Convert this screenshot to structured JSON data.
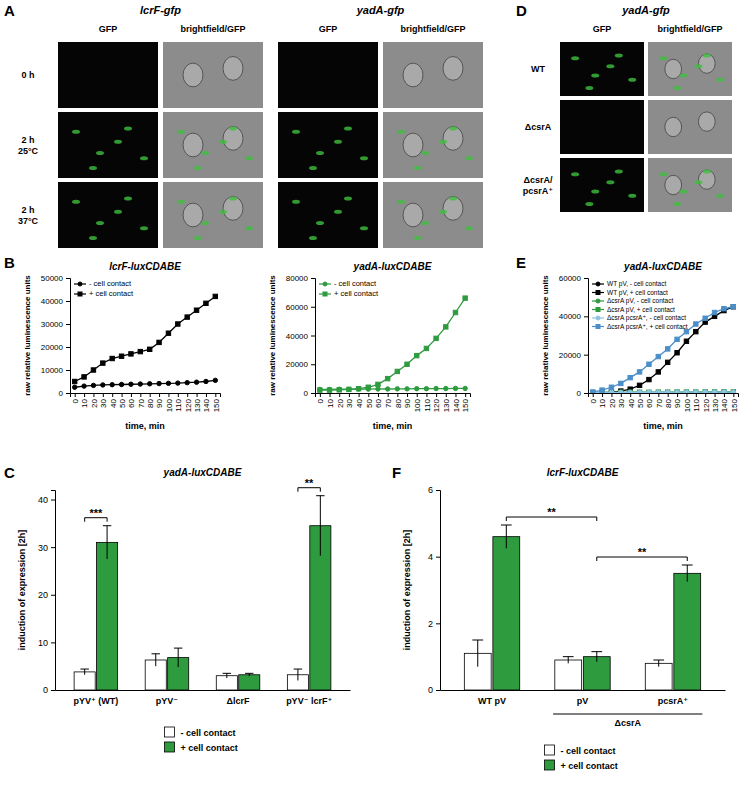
{
  "panel_labels": [
    "A",
    "B",
    "C",
    "D",
    "E",
    "F"
  ],
  "image_panels": [
    {
      "titles": [
        "lcrF-gfp",
        "yadA-gfp"
      ],
      "columns": [
        "GFP",
        "brightfield/GFP",
        "GFP",
        "brightfield/GFP"
      ],
      "rows": [
        [
          "0 h"
        ],
        [
          "2 h",
          "25°C"
        ],
        [
          "2 h",
          "37°C"
        ]
      ]
    },
    {
      "titles": [
        "yadA-gfp"
      ],
      "columns": [
        "GFP",
        "brightfield/GFP"
      ],
      "rows": [
        [
          "WT"
        ],
        [
          "ΔcsrA"
        ],
        [
          "ΔcsrA/",
          "pcsrA⁺"
        ]
      ]
    }
  ],
  "chart_data": [
    {
      "type": "line",
      "title": "lcrF-luxCDABE",
      "xlabel": "time, min",
      "ylabel": "raw relative luminescence units",
      "x": [
        0,
        10,
        20,
        30,
        40,
        50,
        60,
        70,
        80,
        90,
        100,
        110,
        120,
        130,
        140,
        150
      ],
      "xlim": [
        -5,
        155
      ],
      "xticks": [
        0,
        10,
        20,
        30,
        40,
        50,
        60,
        70,
        80,
        90,
        100,
        110,
        120,
        130,
        140,
        150
      ],
      "ylim": [
        0,
        50000
      ],
      "yticks": [
        0,
        10000,
        20000,
        30000,
        40000,
        50000
      ],
      "legend": "top-left",
      "series": [
        {
          "name": "- cell contact",
          "color": "#000000",
          "marker": "circle",
          "values": [
            2500,
            3000,
            3300,
            3500,
            3600,
            3700,
            3800,
            3900,
            4000,
            4100,
            4200,
            4300,
            4500,
            4700,
            5000,
            5500
          ]
        },
        {
          "name": "+ cell contact",
          "color": "#000000",
          "marker": "square",
          "values": [
            5000,
            7000,
            10000,
            13000,
            15000,
            16000,
            17000,
            18000,
            19000,
            22000,
            26000,
            30000,
            33000,
            36000,
            39000,
            42000
          ]
        }
      ]
    },
    {
      "type": "line",
      "title": "yadA-luxCDABE",
      "xlabel": "time, min",
      "ylabel": "raw relative luminescence units",
      "x": [
        0,
        10,
        20,
        30,
        40,
        50,
        60,
        70,
        80,
        90,
        100,
        110,
        120,
        130,
        140,
        150
      ],
      "xlim": [
        -5,
        155
      ],
      "xticks": [
        0,
        10,
        20,
        30,
        40,
        50,
        60,
        70,
        80,
        90,
        100,
        110,
        120,
        130,
        140,
        150
      ],
      "ylim": [
        0,
        80000
      ],
      "yticks": [
        0,
        20000,
        40000,
        60000,
        80000
      ],
      "legend": "top-left",
      "series": [
        {
          "name": "- cell contact",
          "color": "#2e9b3f",
          "marker": "circle",
          "values": [
            2500,
            2500,
            2600,
            2600,
            2700,
            2700,
            2800,
            2800,
            2900,
            2900,
            3000,
            3000,
            3100,
            3100,
            3200,
            3200
          ]
        },
        {
          "name": "+ cell contact",
          "color": "#2e9b3f",
          "marker": "square",
          "values": [
            2000,
            2000,
            2200,
            2500,
            3000,
            4000,
            6000,
            10000,
            15000,
            20000,
            26000,
            31000,
            38000,
            46000,
            56000,
            66000
          ]
        }
      ]
    },
    {
      "type": "bar",
      "title": "yadA-luxCDABE",
      "ylabel": "induction of expression [2h]",
      "categories": [
        "pYV⁺ (WT)",
        "pYV⁻",
        "ΔlcrF",
        "pYV⁻ lcrF⁺"
      ],
      "ylim": [
        0,
        42
      ],
      "yticks": [
        0,
        10,
        20,
        30,
        40
      ],
      "legend": "bottom",
      "series": [
        {
          "name": "- cell contact",
          "color": "#ffffff",
          "values": [
            3.8,
            6.3,
            3.0,
            3.2
          ],
          "errors": [
            0.6,
            1.3,
            0.5,
            1.2
          ]
        },
        {
          "name": "+ cell contact",
          "color": "#2e9b3f",
          "values": [
            31,
            6.8,
            3.2,
            34.5
          ],
          "errors": [
            3.5,
            2.0,
            0.3,
            6.3
          ]
        }
      ],
      "annotations": [
        {
          "text": "***",
          "from": 0,
          "to": 0
        },
        {
          "text": "**",
          "from": 3,
          "to": 3
        }
      ]
    },
    {
      "type": "line",
      "title": "yadA-luxCDABE",
      "xlabel": "time, min",
      "ylabel": "raw relative luminescence units",
      "x": [
        0,
        10,
        20,
        30,
        40,
        50,
        60,
        70,
        80,
        90,
        100,
        110,
        120,
        130,
        140,
        150
      ],
      "xlim": [
        -5,
        155
      ],
      "xticks": [
        0,
        10,
        20,
        30,
        40,
        50,
        60,
        70,
        80,
        90,
        100,
        110,
        120,
        130,
        140,
        150
      ],
      "ylim": [
        0,
        60000
      ],
      "yticks": [
        0,
        20000,
        40000,
        60000
      ],
      "legend": "top-left",
      "series": [
        {
          "name": "WT pV, - cell contact",
          "color": "#000000",
          "marker": "circle",
          "values": [
            100,
            100,
            100,
            150,
            150,
            150,
            200,
            200,
            200,
            200,
            250,
            250,
            250,
            300,
            300,
            300
          ]
        },
        {
          "name": "WT pV, + cell contact",
          "color": "#000000",
          "marker": "square",
          "values": [
            0,
            200,
            500,
            1000,
            2000,
            4000,
            7000,
            11000,
            16000,
            21000,
            27000,
            32000,
            37000,
            40000,
            43000,
            45000
          ]
        },
        {
          "name": "ΔcsrA pV, - cell contact",
          "color": "#2e9b3f",
          "marker": "circle",
          "values": [
            200,
            200,
            200,
            200,
            250,
            250,
            250,
            250,
            300,
            300,
            300,
            300,
            350,
            350,
            350,
            350
          ]
        },
        {
          "name": "ΔcsrA pV, + cell contact",
          "color": "#2e9b3f",
          "marker": "square",
          "values": [
            300,
            300,
            350,
            350,
            400,
            400,
            400,
            450,
            450,
            500,
            500,
            500,
            550,
            550,
            600,
            600
          ]
        },
        {
          "name": "ΔcsrA pcsrA⁺, - cell contact",
          "color": "#8ec3e6",
          "marker": "circle",
          "values": [
            300,
            300,
            300,
            350,
            350,
            350,
            400,
            400,
            400,
            450,
            450,
            450,
            500,
            500,
            500,
            500
          ]
        },
        {
          "name": "ΔcsrA pcsrA⁺, + cell contact",
          "color": "#4a8fc9",
          "marker": "square",
          "values": [
            500,
            1500,
            3000,
            5000,
            8000,
            11000,
            15000,
            19000,
            23000,
            28000,
            32000,
            36000,
            39000,
            42000,
            44000,
            45000
          ]
        }
      ]
    },
    {
      "type": "bar",
      "title": "lcrF-luxCDABE",
      "ylabel": "induction of expression [2h]",
      "categories": [
        "WT pV",
        "pV",
        "pcsrA⁺"
      ],
      "ylim": [
        0,
        6
      ],
      "yticks": [
        0,
        2,
        4,
        6
      ],
      "legend": "bottom",
      "series": [
        {
          "name": "- cell contact",
          "color": "#ffffff",
          "values": [
            1.1,
            0.9,
            0.8
          ],
          "errors": [
            0.4,
            0.1,
            0.1
          ]
        },
        {
          "name": "+ cell contact",
          "color": "#2e9b3f",
          "values": [
            4.6,
            1.0,
            3.5
          ],
          "errors": [
            0.35,
            0.15,
            0.25
          ]
        }
      ],
      "annotations": [
        {
          "text": "**",
          "from": 0,
          "to": 1
        },
        {
          "text": "**",
          "from": 1,
          "to": 2
        }
      ],
      "group_labels": [
        {
          "text": "ΔcsrA",
          "from": 1,
          "to": 2
        }
      ]
    }
  ]
}
